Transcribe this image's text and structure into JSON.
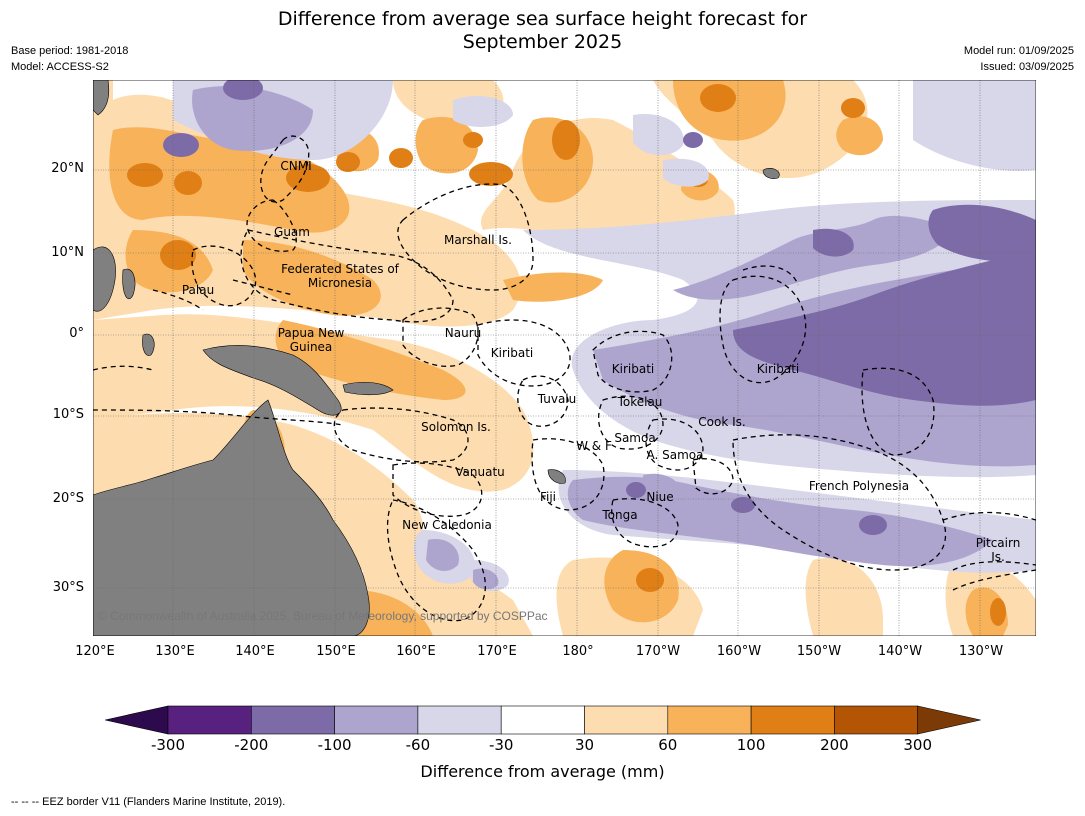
{
  "title_line1": "Difference from average sea surface height forecast for",
  "title_line2": "September 2025",
  "meta_left": {
    "base_period": "Base period: 1981-2018",
    "model": "Model: ACCESS-S2"
  },
  "meta_right": {
    "model_run": "Model run: 01/09/2025",
    "issued": "Issued: 03/09/2025"
  },
  "lat_labels": [
    "20°N",
    "10°N",
    "0°",
    "10°S",
    "20°S",
    "30°S"
  ],
  "lon_labels": [
    "120°E",
    "130°E",
    "140°E",
    "150°E",
    "160°E",
    "170°E",
    "180°",
    "170°W",
    "160°W",
    "150°W",
    "140°W",
    "130°W"
  ],
  "regions": [
    "CNMI",
    "Guam",
    "Marshall Is.",
    "Federated States of Micronesia",
    "Palau",
    "Papua New Guinea",
    "Nauru",
    "Kiribati",
    "Kiribati",
    "Kiribati",
    "Tuvalu",
    "Tokelau",
    "Solomon Is.",
    "Cook Is.",
    "Samoa",
    "W & F",
    "A. Samoa",
    "Vanuatu",
    "Fiji",
    "Niue",
    "Tonga",
    "French Polynesia",
    "New Caledonia",
    "Pitcairn Is."
  ],
  "credit": "© Commonwealth of Australia 2025, Bureau of Meteorology, supported by COSPPac",
  "colorbar": {
    "ticks": [
      "-300",
      "-200",
      "-100",
      "-60",
      "-30",
      "30",
      "60",
      "100",
      "200",
      "300"
    ],
    "colors": [
      "#2d0a4d",
      "#58217f",
      "#7d6ba8",
      "#aea5cf",
      "#d8d6e9",
      "#ffffff",
      "#fdddb0",
      "#f8b35a",
      "#e07f15",
      "#b45505",
      "#7c3a06"
    ],
    "label": "Difference from average (mm)"
  },
  "land_color": "#808080",
  "footnote": "--  --  -- EEZ border V11 (Flanders Marine Institute, 2019)."
}
